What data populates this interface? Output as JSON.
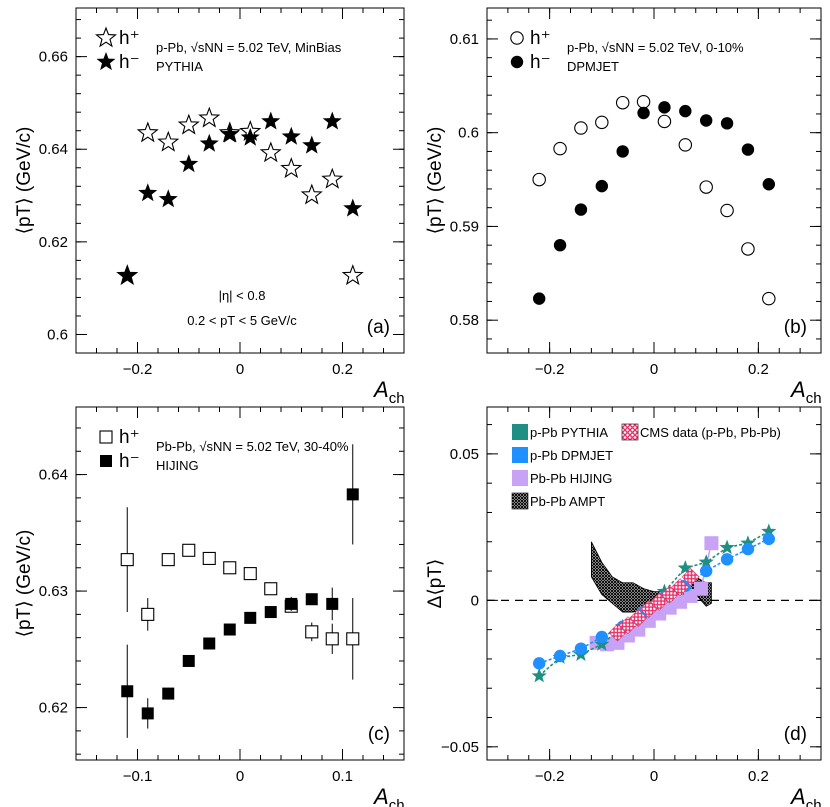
{
  "chart_data": [
    {
      "type": "scatter",
      "panel": "a",
      "ylabel": "⟨pT⟩ (GeV/c)",
      "xlabel": "Ach",
      "xlim": [
        -0.32,
        0.32
      ],
      "ylim": [
        0.596,
        0.6705
      ],
      "xticks": [
        -0.2,
        0,
        0.2
      ],
      "xtick_labels": [
        "−0.2",
        "0",
        "0.2"
      ],
      "yticks": [
        0.6,
        0.62,
        0.64,
        0.66
      ],
      "ytick_labels": [
        "0.6",
        "0.62",
        "0.64",
        "0.66"
      ],
      "legend": [
        "h⁺",
        "h⁻"
      ],
      "title": "p-Pb, √sNN = 5.02 TeV, MinBias",
      "subtitle": "PYTHIA",
      "annotations": [
        "|η| < 0.8",
        "0.2 < pT < 5 GeV/c"
      ],
      "panel_label": "(a)",
      "series": [
        {
          "name": "h+",
          "marker": "open-star",
          "x": [
            -0.22,
            -0.18,
            -0.14,
            -0.1,
            -0.06,
            -0.02,
            0.02,
            0.06,
            0.1,
            0.14,
            0.18,
            0.22
          ],
          "y": [
            0.6127,
            0.6435,
            0.6415,
            0.6452,
            0.6467,
            0.6435,
            0.6438,
            0.6392,
            0.6358,
            0.6301,
            0.6335,
            0.6127
          ]
        },
        {
          "name": "h-",
          "marker": "filled-star",
          "x": [
            -0.22,
            -0.18,
            -0.14,
            -0.1,
            -0.06,
            -0.02,
            0.02,
            0.06,
            0.1,
            0.14,
            0.18,
            0.22
          ],
          "y": [
            0.6127,
            0.6305,
            0.6292,
            0.6368,
            0.6412,
            0.6432,
            0.6425,
            0.646,
            0.6427,
            0.6408,
            0.646,
            0.6272
          ]
        }
      ]
    },
    {
      "type": "scatter",
      "panel": "b",
      "ylabel": "⟨pT⟩ (GeV/c)",
      "xlabel": "Ach",
      "xlim": [
        -0.32,
        0.32
      ],
      "ylim": [
        0.5765,
        0.6133
      ],
      "xticks": [
        -0.2,
        0,
        0.2
      ],
      "xtick_labels": [
        "−0.2",
        "0",
        "0.2"
      ],
      "yticks": [
        0.58,
        0.59,
        0.6,
        0.61
      ],
      "ytick_labels": [
        "0.58",
        "0.59",
        "0.6",
        "0.61"
      ],
      "legend": [
        "h⁺",
        "h⁻"
      ],
      "title": "p-Pb, √sNN = 5.02 TeV, 0-10%",
      "subtitle": "DPMJET",
      "panel_label": "(b)",
      "series": [
        {
          "name": "h+",
          "marker": "open-circle",
          "x": [
            -0.22,
            -0.18,
            -0.14,
            -0.1,
            -0.06,
            -0.02,
            0.02,
            0.06,
            0.1,
            0.14,
            0.18,
            0.22
          ],
          "y": [
            0.595,
            0.5983,
            0.6005,
            0.6011,
            0.6032,
            0.6033,
            0.6012,
            0.5987,
            0.5942,
            0.5917,
            0.5876,
            0.5823
          ]
        },
        {
          "name": "h-",
          "marker": "filled-circle",
          "x": [
            -0.22,
            -0.18,
            -0.14,
            -0.1,
            -0.06,
            -0.02,
            0.02,
            0.06,
            0.1,
            0.14,
            0.18,
            0.22
          ],
          "y": [
            0.5823,
            0.588,
            0.5918,
            0.5943,
            0.598,
            0.6021,
            0.6027,
            0.6023,
            0.6013,
            0.601,
            0.5982,
            0.5945
          ]
        }
      ]
    },
    {
      "type": "scatter",
      "panel": "c",
      "ylabel": "⟨pT⟩ (GeV/c)",
      "xlabel": "Ach",
      "xlim": [
        -0.16,
        0.16
      ],
      "ylim": [
        0.6155,
        0.6458
      ],
      "xticks": [
        -0.1,
        0,
        0.1
      ],
      "xtick_labels": [
        "−0.1",
        "0",
        "0.1"
      ],
      "yticks": [
        0.62,
        0.63,
        0.64
      ],
      "ytick_labels": [
        "0.62",
        "0.63",
        "0.64"
      ],
      "legend": [
        "h⁺",
        "h⁻"
      ],
      "title": "Pb-Pb, √sNN = 5.02 TeV, 30-40%",
      "subtitle": "HIJING",
      "panel_label": "(c)",
      "series": [
        {
          "name": "h+",
          "marker": "open-square",
          "x": [
            -0.11,
            -0.09,
            -0.07,
            -0.05,
            -0.03,
            -0.01,
            0.01,
            0.03,
            0.05,
            0.07,
            0.09,
            0.11
          ],
          "y": [
            0.6327,
            0.628,
            0.6327,
            0.6335,
            0.6328,
            0.632,
            0.6315,
            0.6302,
            0.6287,
            0.6265,
            0.6259,
            0.6259
          ],
          "err": [
            0.0045,
            0.0014,
            0.0005,
            0.0005,
            0.0005,
            0.0005,
            0.0005,
            0.0005,
            0.0005,
            0.0008,
            0.0013,
            0.0035
          ]
        },
        {
          "name": "h-",
          "marker": "filled-square",
          "x": [
            -0.11,
            -0.09,
            -0.07,
            -0.05,
            -0.03,
            -0.01,
            0.01,
            0.03,
            0.05,
            0.07,
            0.09,
            0.11
          ],
          "y": [
            0.6214,
            0.6195,
            0.6212,
            0.624,
            0.6255,
            0.6267,
            0.6277,
            0.6282,
            0.6289,
            0.6293,
            0.6289,
            0.6383
          ],
          "err": [
            0.004,
            0.0013,
            0.0005,
            0.0005,
            0.0005,
            0.0005,
            0.0005,
            0.0005,
            0.0006,
            0.0005,
            0.0014,
            0.0043
          ]
        }
      ]
    },
    {
      "type": "line",
      "panel": "d",
      "ylabel": "Δ⟨pT⟩",
      "xlabel": "Ach",
      "xlim": [
        -0.32,
        0.32
      ],
      "ylim": [
        -0.0545,
        0.066
      ],
      "xticks": [
        -0.2,
        0,
        0.2
      ],
      "xtick_labels": [
        "−0.2",
        "0",
        "0.2"
      ],
      "yticks": [
        -0.05,
        0,
        0.05
      ],
      "ytick_labels": [
        "−0.05",
        "0",
        "0.05"
      ],
      "legend": [
        "p-Pb PYTHIA",
        "p-Pb DPMJET",
        "Pb-Pb HIJING",
        "Pb-Pb AMPT",
        "CMS data (p-Pb, Pb-Pb)"
      ],
      "reference_line": 0,
      "panel_label": "(d)",
      "series": [
        {
          "name": "p-Pb PYTHIA",
          "color": "#1f8f84",
          "marker": "star",
          "x": [
            -0.22,
            -0.18,
            -0.14,
            -0.1,
            -0.06,
            -0.02,
            0.02,
            0.06,
            0.1,
            0.14,
            0.18,
            0.22
          ],
          "y": [
            -0.0258,
            -0.0195,
            -0.0185,
            -0.015,
            -0.009,
            -0.0035,
            0.003,
            0.011,
            0.013,
            0.018,
            0.0195,
            0.0235
          ]
        },
        {
          "name": "p-Pb DPMJET",
          "color": "#1e90ff",
          "marker": "circle",
          "x": [
            -0.22,
            -0.18,
            -0.14,
            -0.1,
            -0.06,
            -0.02,
            0.02,
            0.06,
            0.1,
            0.14,
            0.18,
            0.22
          ],
          "y": [
            -0.0215,
            -0.019,
            -0.0165,
            -0.0125,
            -0.009,
            -0.004,
            0.001,
            0.005,
            0.01,
            0.014,
            0.0175,
            0.021
          ]
        },
        {
          "name": "Pb-Pb HIJING",
          "color": "#c8a2f5",
          "marker": "square",
          "x": [
            -0.11,
            -0.09,
            -0.07,
            -0.05,
            -0.03,
            -0.01,
            0.01,
            0.03,
            0.05,
            0.07,
            0.09,
            0.11
          ],
          "y": [
            -0.0145,
            -0.015,
            -0.0145,
            -0.012,
            -0.01,
            -0.007,
            -0.0045,
            -0.0025,
            -0.0005,
            0.0015,
            0.004,
            0.0195
          ]
        },
        {
          "name": "Pb-Pb AMPT",
          "color": "#000000",
          "marker": "band",
          "x": [
            -0.12,
            -0.1,
            -0.08,
            -0.06,
            -0.04,
            -0.02,
            0.0,
            0.02,
            0.04,
            0.06,
            0.08,
            0.1,
            0.11
          ],
          "y_low": [
            0.008,
            0.002,
            -0.001,
            -0.004,
            -0.004,
            -0.003,
            -0.001,
            0.0,
            0.0,
            0.0,
            0.002,
            -0.002,
            -0.001
          ],
          "y_high": [
            0.02,
            0.013,
            0.008,
            0.006,
            0.006,
            0.004,
            0.003,
            0.003,
            0.004,
            0.006,
            0.008,
            0.006,
            0.006
          ]
        },
        {
          "name": "CMS data (p-Pb, Pb-Pb)",
          "color": "#e8336d",
          "marker": "hatched-band",
          "x": [
            -0.07,
            -0.05,
            -0.03,
            -0.01,
            0.01,
            0.03,
            0.05,
            0.07
          ],
          "y": [
            -0.011,
            -0.0085,
            -0.006,
            -0.003,
            -0.0005,
            0.002,
            0.0045,
            0.008
          ]
        }
      ]
    }
  ]
}
